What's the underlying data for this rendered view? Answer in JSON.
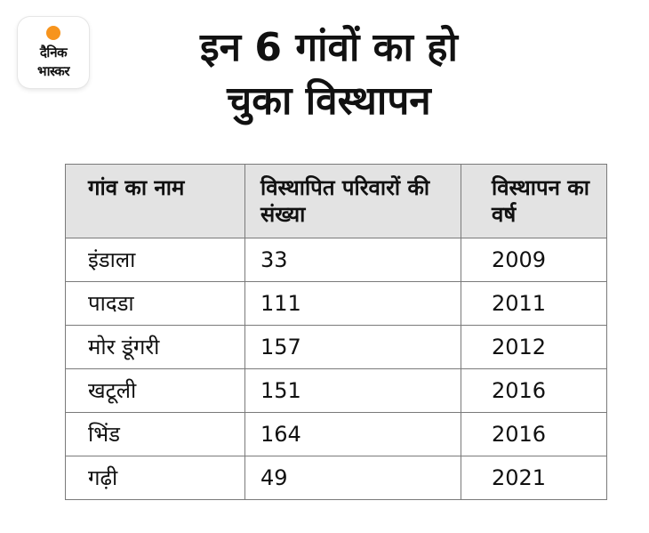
{
  "logo": {
    "line1": "दैनिक",
    "line2": "भास्कर",
    "accent_color": "#f7941d"
  },
  "title": {
    "line1": "इन 6 गांवों का हो",
    "line2": "चुका विस्थापन"
  },
  "table": {
    "headers": [
      "गांव का नाम",
      "विस्थापित परिवारों की संख्या",
      "विस्थापन का वर्ष"
    ],
    "rows": [
      [
        "इंडाला",
        "33",
        "2009"
      ],
      [
        "पादडा",
        "111",
        "2011"
      ],
      [
        "मोर डूंगरी",
        "157",
        "2012"
      ],
      [
        "खटूली",
        "151",
        "2016"
      ],
      [
        "भिंड",
        "164",
        "2016"
      ],
      [
        "गढ़ी",
        "49",
        "2021"
      ]
    ]
  }
}
